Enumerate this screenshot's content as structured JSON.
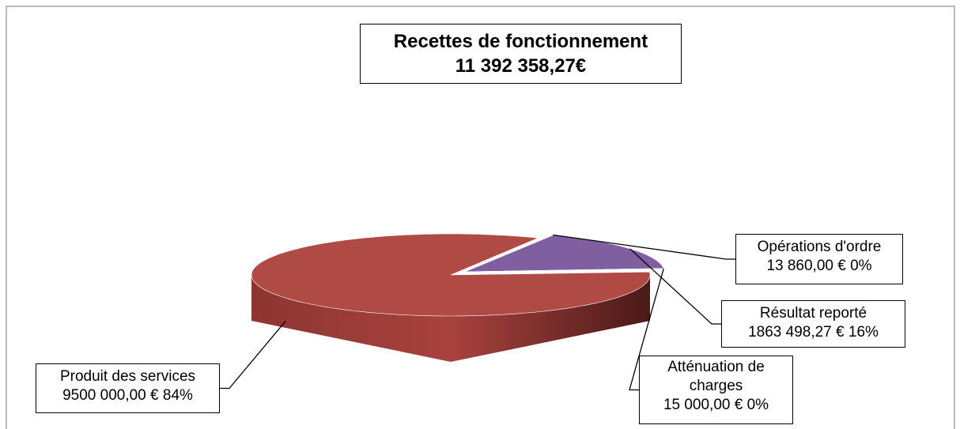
{
  "chart_data": {
    "type": "pie",
    "title": "Recettes de fonctionnement",
    "subtitle": "11 392 358,27€",
    "categories": [
      "Opérations d'ordre",
      "Résultat reporté",
      "Atténuation de charges",
      "Produit des services"
    ],
    "values": [
      13860,
      1863498.27,
      15000,
      9500000
    ],
    "value_labels": [
      "13 860,00 € 0%",
      "1863 498,27 € 16%",
      "15 000,00 € 0%",
      "9500 000,00 € 84%"
    ],
    "colors": [
      "#77933c",
      "#7f5f9f",
      "#1f3a5a",
      "#b04a45"
    ]
  }
}
